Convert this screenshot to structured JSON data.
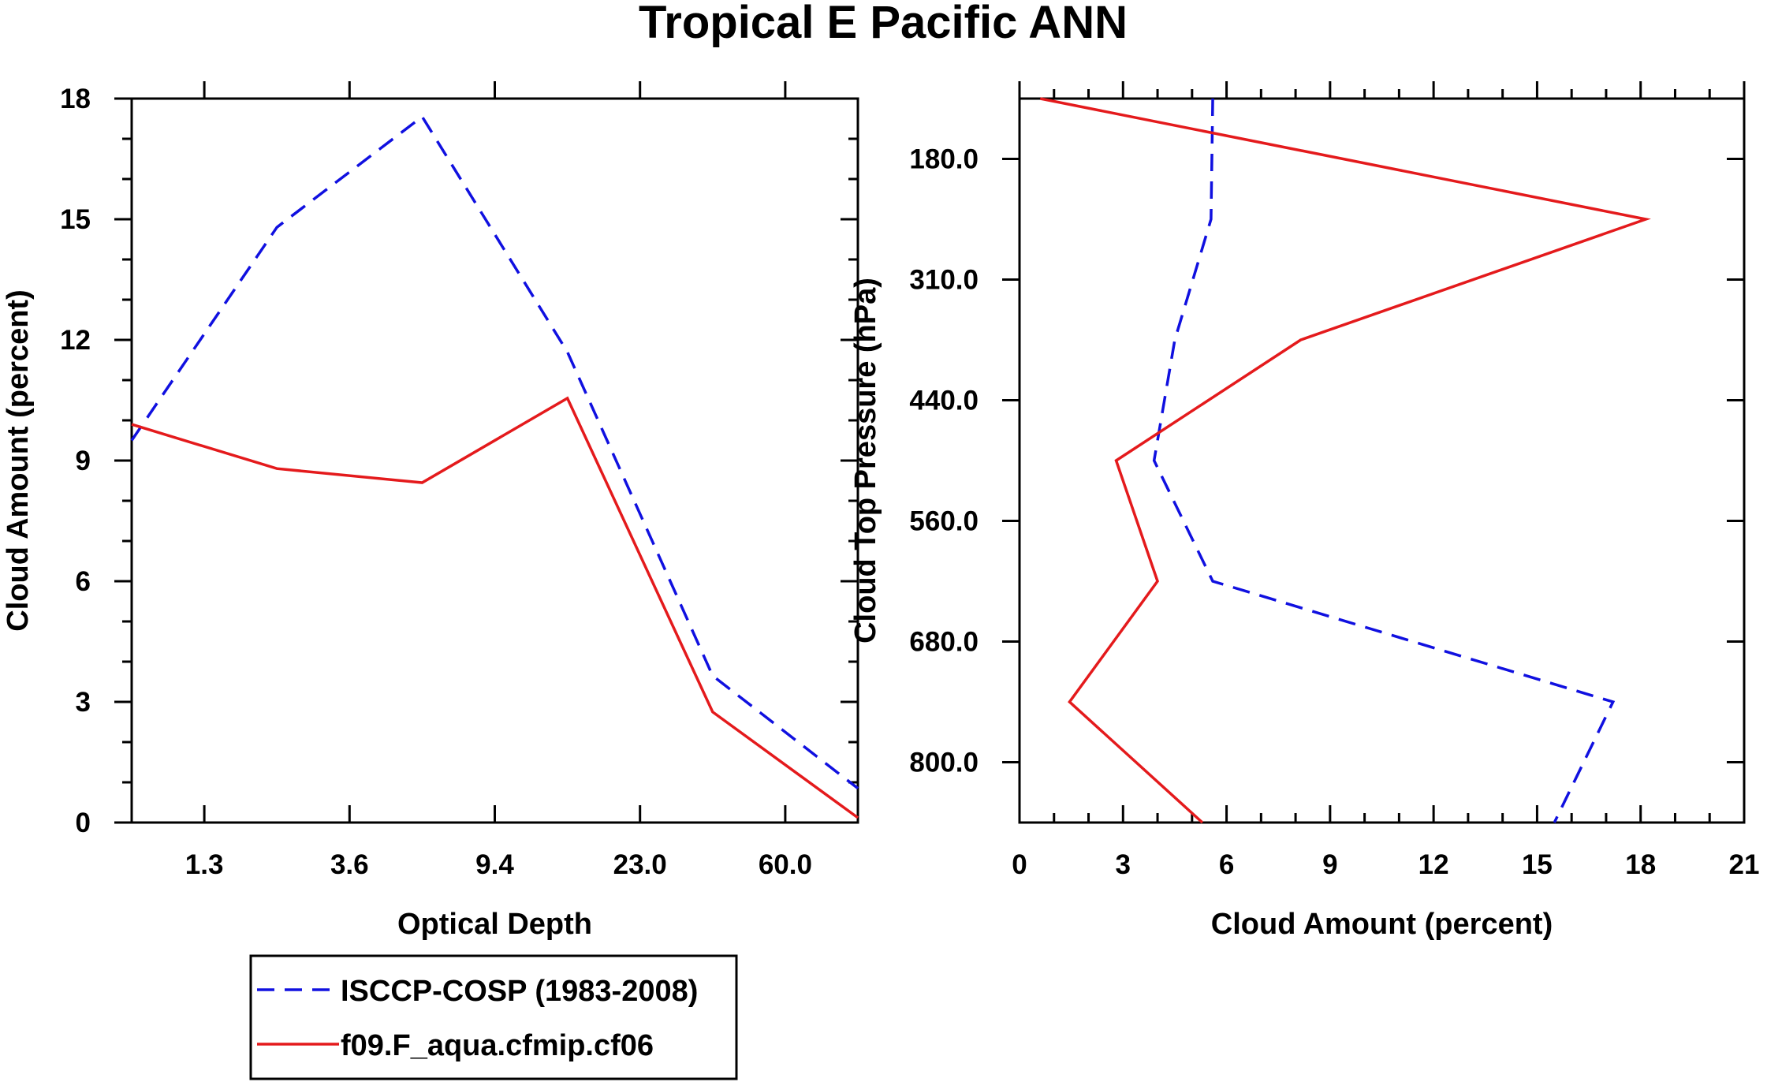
{
  "figure_title": "Tropical E Pacific ANN",
  "colors": {
    "isccp": "#1010e0",
    "model": "#e41a1c",
    "axis": "#000000"
  },
  "legend": {
    "entries": [
      {
        "label": "ISCCP-COSP (1983-2008)",
        "style": "dashed",
        "color": "#1010e0"
      },
      {
        "label": "f09.F_aqua.cfmip.cf06",
        "style": "solid",
        "color": "#e41a1c"
      }
    ]
  },
  "chart_data": [
    {
      "type": "line",
      "title": "",
      "xlabel": "Optical Depth",
      "ylabel": "Cloud Amount (percent)",
      "x_bins": [
        0,
        1,
        2,
        3,
        4,
        5,
        6,
        7
      ],
      "xlim": [
        0,
        5
      ],
      "x_tick_positions": [
        0.5,
        1.5,
        2.5,
        3.5,
        4.5
      ],
      "x_tick_labels": [
        "1.3",
        "3.6",
        "9.4",
        "23.0",
        "60.0"
      ],
      "ylim": [
        0,
        18
      ],
      "y_ticks": [
        0,
        3,
        6,
        9,
        12,
        15,
        18
      ],
      "y_tick_labels": [
        "0",
        "3",
        "6",
        "9",
        "12",
        "15",
        "18"
      ],
      "series": [
        {
          "name": "ISCCP-COSP (1983-2008)",
          "style": "dashed",
          "x": [
            0,
            1,
            2,
            3,
            4,
            5
          ],
          "y": [
            9.5,
            14.8,
            17.55,
            11.7,
            3.65,
            0.85
          ]
        },
        {
          "name": "f09.F_aqua.cfmip.cf06",
          "style": "solid",
          "x": [
            0,
            1,
            2,
            3,
            4,
            5
          ],
          "y": [
            9.9,
            8.8,
            8.45,
            10.55,
            2.75,
            0.12
          ]
        }
      ]
    },
    {
      "type": "line",
      "title": "",
      "xlabel": "Cloud Amount (percent)",
      "ylabel": "Cloud Top Pressure (hPa)",
      "xlim": [
        0,
        21
      ],
      "x_ticks": [
        0,
        3,
        6,
        9,
        12,
        15,
        18,
        21
      ],
      "x_tick_labels": [
        "0",
        "3",
        "6",
        "9",
        "12",
        "15",
        "18",
        "21"
      ],
      "ylim": [
        0,
        6
      ],
      "y_tick_positions": [
        0.5,
        1.5,
        2.5,
        3.5,
        4.5,
        5.5
      ],
      "y_tick_labels": [
        "180.0",
        "310.0",
        "440.0",
        "560.0",
        "680.0",
        "800.0"
      ],
      "series": [
        {
          "name": "ISCCP-COSP (1983-2008)",
          "style": "dashed",
          "y": [
            0,
            1,
            2,
            3,
            4,
            5,
            6
          ],
          "x": [
            5.6,
            5.55,
            4.5,
            3.9,
            5.6,
            17.2,
            15.5
          ]
        },
        {
          "name": "f09.F_aqua.cfmip.cf06",
          "style": "solid",
          "y": [
            0,
            1,
            2,
            3,
            4,
            5,
            6
          ],
          "x": [
            0.6,
            18.15,
            8.15,
            2.8,
            4.0,
            1.45,
            5.3
          ]
        }
      ]
    }
  ]
}
